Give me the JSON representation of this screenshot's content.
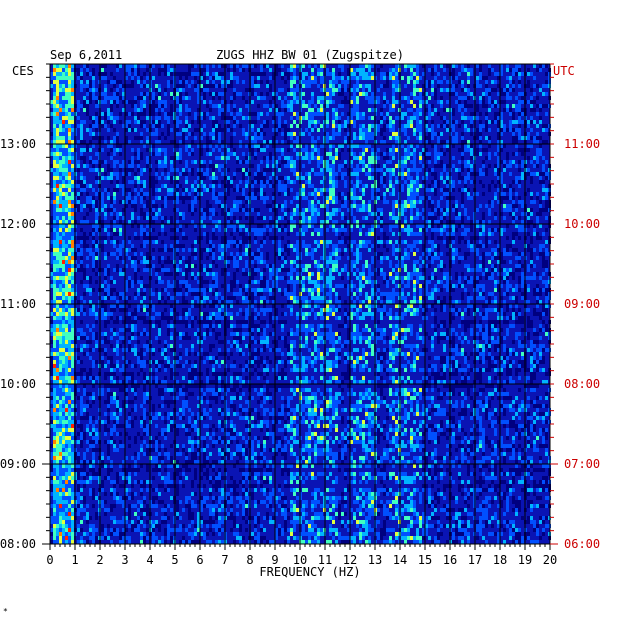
{
  "chart_data": {
    "type": "heatmap",
    "date": "Sep 6,2011",
    "title": "ZUGS HHZ BW 01 (Zugspitze)",
    "xlabel": "FREQUENCY (HZ)",
    "xlim": [
      0,
      20
    ],
    "x_ticks": [
      "0",
      "1",
      "2",
      "3",
      "4",
      "5",
      "6",
      "7",
      "8",
      "9",
      "10",
      "11",
      "12",
      "13",
      "14",
      "15",
      "16",
      "17",
      "18",
      "19",
      "20"
    ],
    "left_axis_label": "CES",
    "right_axis_label": "UTC",
    "left_time_ticks": [
      "08:00",
      "09:00",
      "10:00",
      "11:00",
      "12:00",
      "13:00"
    ],
    "right_time_ticks": [
      "06:00",
      "07:00",
      "08:00",
      "09:00",
      "10:00",
      "11:00"
    ],
    "time_range_local": [
      "08:00",
      "13:45"
    ],
    "colors": {
      "background": "#0a14b4",
      "grid": "#000000",
      "right_labels": "#cc0000",
      "scale": [
        "#000080",
        "#0014c8",
        "#0050ff",
        "#00b4ff",
        "#40ffc0",
        "#e0ff40",
        "#ff8000",
        "#ff2000"
      ]
    },
    "energy_bands_hz": [
      {
        "from": 0.1,
        "to": 0.9,
        "level": "high"
      },
      {
        "from": 9.5,
        "to": 11.5,
        "level": "medium"
      },
      {
        "from": 12.0,
        "to": 13.0,
        "level": "medium"
      },
      {
        "from": 13.5,
        "to": 14.8,
        "level": "medium"
      }
    ]
  },
  "corner_mark": "*"
}
